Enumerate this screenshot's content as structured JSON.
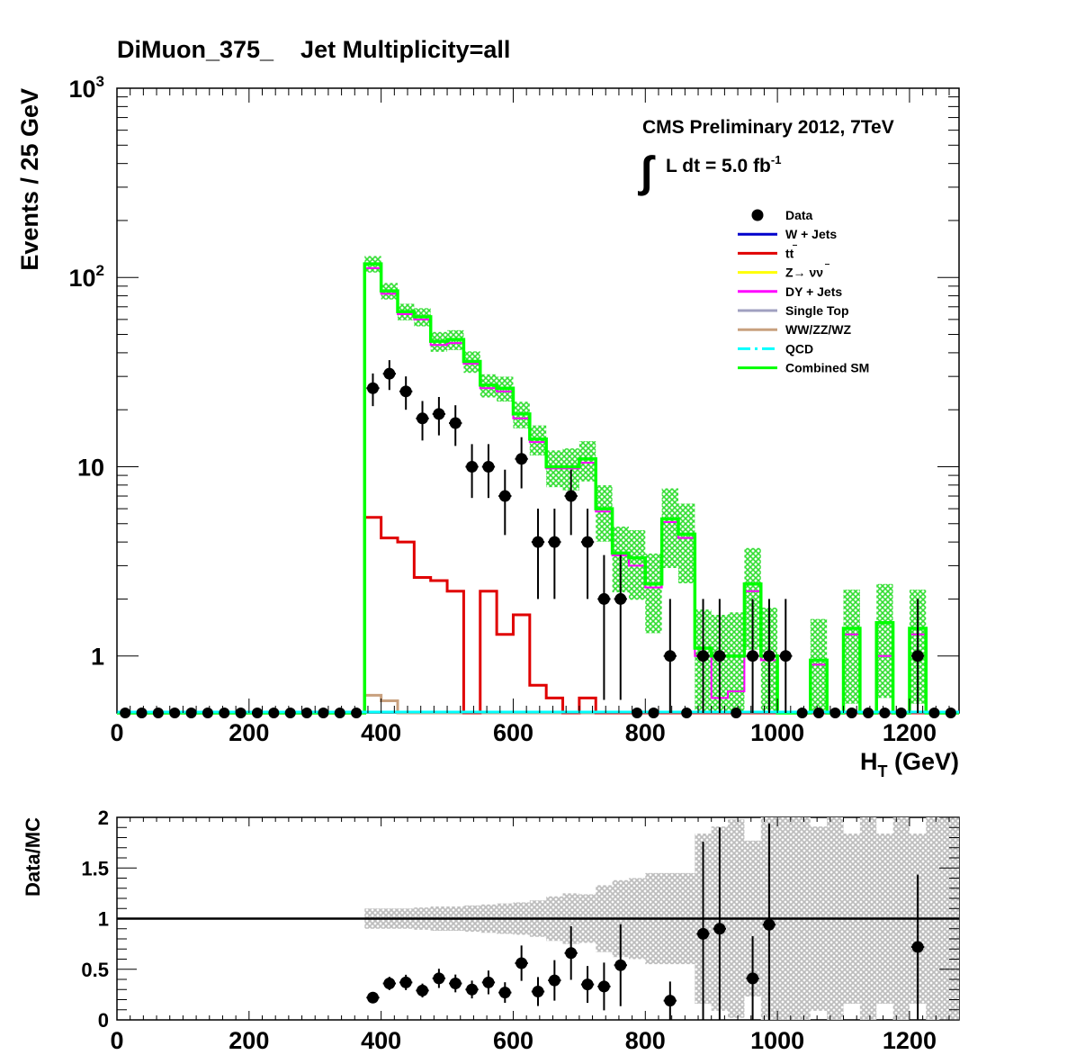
{
  "title": "DiMuon_375_    Jet Multiplicity=all",
  "cms_label": "CMS Preliminary 2012, 7TeV",
  "lumi_label": "L dt = 5.0 fb",
  "lumi_sup": "-1",
  "colors": {
    "data": "#000000",
    "wjets": "#0000cc",
    "ttbar": "#e00000",
    "znunu": "#ffff00",
    "dyjets": "#ff00ff",
    "singletop": "#a0a0c0",
    "diboson": "#c8a07e",
    "qcd": "#00ffff",
    "combined": "#00ff00",
    "band": "#90e090",
    "ratio_band": "#c8c8c8"
  },
  "chart_data": [
    {
      "type": "line",
      "name": "main",
      "title": "DiMuon_375_    Jet Multiplicity=all",
      "ylabel": "Events / 25 GeV",
      "xlabel": "H",
      "xlabel_sub": "T",
      "xlabel_unit": "(GeV)",
      "xlim": [
        0,
        1275
      ],
      "ylim": [
        0.5,
        1000
      ],
      "yscale": "log",
      "bin_width": 25,
      "x_ticks": [
        "0",
        "200",
        "400",
        "600",
        "800",
        "1000",
        "1200"
      ],
      "y_ticks": [
        "1",
        "10",
        "10",
        "10"
      ],
      "y_tick_sups": [
        "",
        "",
        "2",
        "3"
      ],
      "legend": [
        {
          "label": "Data",
          "marker": "point",
          "color": "#000000"
        },
        {
          "label": "W + Jets",
          "marker": "line",
          "color": "#0000cc"
        },
        {
          "label": "tt",
          "marker": "line",
          "color": "#e00000"
        },
        {
          "label": "Z→ νν",
          "marker": "line",
          "color": "#ffff00"
        },
        {
          "label": "DY + Jets",
          "marker": "line",
          "color": "#ff00ff"
        },
        {
          "label": "Single Top",
          "marker": "line",
          "color": "#a0a0c0"
        },
        {
          "label": "WW/ZZ/WZ",
          "marker": "line",
          "color": "#c8a07e"
        },
        {
          "label": "QCD",
          "marker": "dashdot",
          "color": "#00ffff"
        },
        {
          "label": "Combined SM",
          "marker": "line",
          "color": "#00ff00"
        }
      ],
      "combined_sm": [
        0,
        0,
        0,
        0,
        0,
        0,
        0,
        0,
        0,
        0,
        0,
        0,
        0,
        0,
        0,
        118,
        85,
        66,
        62,
        46,
        47,
        36,
        27,
        26,
        19,
        14,
        10,
        10,
        11,
        6,
        3.5,
        3.3,
        2.4,
        5.3,
        4.4,
        1.1,
        1.0,
        1.0,
        2.4,
        1.0,
        0,
        0,
        0.95,
        0,
        1.4,
        0,
        1.5,
        0,
        1.4,
        0,
        0
      ],
      "combined_sm_unc": [
        0,
        0,
        0,
        0,
        0,
        0,
        0,
        0,
        0,
        0,
        0,
        0,
        0,
        0,
        0,
        0.1,
        0.1,
        0.1,
        0.11,
        0.12,
        0.12,
        0.13,
        0.14,
        0.15,
        0.16,
        0.18,
        0.22,
        0.25,
        0.24,
        0.33,
        0.38,
        0.4,
        0.45,
        0.45,
        0.45,
        0.6,
        0.65,
        0.7,
        0.55,
        0.8,
        0,
        0,
        0.65,
        0,
        0.6,
        0,
        0.6,
        0,
        0.6,
        0,
        0
      ],
      "dy_jets": [
        0,
        0,
        0,
        0,
        0,
        0,
        0,
        0,
        0,
        0,
        0,
        0,
        0,
        0,
        0,
        112,
        82,
        64,
        60,
        44,
        45,
        35,
        26,
        25,
        18,
        13.5,
        9.8,
        9.8,
        10.5,
        5.8,
        3.4,
        3.0,
        2.3,
        5.1,
        4.2,
        1.0,
        0.6,
        0.65,
        2.2,
        0.95,
        0,
        0,
        0.9,
        0,
        1.3,
        0,
        1.0,
        0,
        1.3,
        0,
        0
      ],
      "ttbar": [
        0,
        0,
        0,
        0,
        0,
        0,
        0,
        0,
        0,
        0,
        0,
        0,
        0,
        0,
        0,
        5.4,
        4.2,
        4.0,
        2.6,
        2.5,
        2.2,
        0,
        2.2,
        1.3,
        1.65,
        0.7,
        0.6,
        0,
        0.6,
        0,
        0,
        0.5,
        0,
        0,
        0,
        0,
        0,
        0,
        0,
        0,
        0,
        0,
        0,
        0,
        0,
        0,
        0,
        0,
        0,
        0,
        0
      ],
      "diboson": [
        0,
        0,
        0,
        0,
        0,
        0,
        0,
        0,
        0,
        0,
        0,
        0,
        0,
        0,
        0,
        0.62,
        0.58,
        0,
        0,
        0,
        0,
        0,
        0,
        0,
        0,
        0,
        0,
        0,
        0,
        0,
        0,
        0,
        0,
        0,
        0,
        0,
        0,
        0,
        0,
        0,
        0,
        0,
        0,
        0,
        0,
        0,
        0,
        0,
        0,
        0,
        0
      ],
      "data": [
        0,
        0,
        0,
        0,
        0,
        0,
        0,
        0,
        0,
        0,
        0,
        0,
        0,
        0,
        0,
        26,
        31,
        25,
        18,
        19,
        17,
        10,
        10,
        7,
        11,
        4,
        4,
        7,
        4,
        2,
        2,
        0,
        0,
        1,
        0,
        1,
        1,
        0,
        1,
        1,
        1,
        0,
        0,
        0,
        0,
        0,
        0,
        0,
        1,
        0,
        0
      ]
    },
    {
      "type": "scatter",
      "name": "ratio",
      "ylabel": "Data/MC",
      "xlim": [
        0,
        1275
      ],
      "ylim": [
        0,
        2
      ],
      "x_ticks": [
        "0",
        "200",
        "400",
        "600",
        "800",
        "1000",
        "1200"
      ],
      "y_ticks": [
        "0",
        "0.5",
        "1",
        "1.5",
        "2"
      ],
      "reference_line": 1,
      "points": [
        {
          "x": 387.5,
          "y": 0.22
        },
        {
          "x": 412.5,
          "y": 0.36
        },
        {
          "x": 437.5,
          "y": 0.37
        },
        {
          "x": 462.5,
          "y": 0.29
        },
        {
          "x": 487.5,
          "y": 0.41
        },
        {
          "x": 512.5,
          "y": 0.36
        },
        {
          "x": 537.5,
          "y": 0.3
        },
        {
          "x": 562.5,
          "y": 0.37
        },
        {
          "x": 587.5,
          "y": 0.27
        },
        {
          "x": 612.5,
          "y": 0.56
        },
        {
          "x": 637.5,
          "y": 0.28
        },
        {
          "x": 662.5,
          "y": 0.39
        },
        {
          "x": 687.5,
          "y": 0.66
        },
        {
          "x": 712.5,
          "y": 0.35
        },
        {
          "x": 737.5,
          "y": 0.33
        },
        {
          "x": 762.5,
          "y": 0.54
        },
        {
          "x": 837.5,
          "y": 0.19
        },
        {
          "x": 887.5,
          "y": 0.85
        },
        {
          "x": 912.5,
          "y": 0.9
        },
        {
          "x": 962.5,
          "y": 0.41
        },
        {
          "x": 987.5,
          "y": 0.94
        },
        {
          "x": 1212.5,
          "y": 0.72
        }
      ]
    }
  ]
}
